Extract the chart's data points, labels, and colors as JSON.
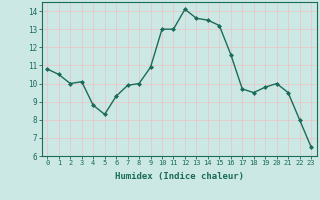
{
  "x": [
    0,
    1,
    2,
    3,
    4,
    5,
    6,
    7,
    8,
    9,
    10,
    11,
    12,
    13,
    14,
    15,
    16,
    17,
    18,
    19,
    20,
    21,
    22,
    23
  ],
  "y": [
    10.8,
    10.5,
    10.0,
    10.1,
    8.8,
    8.3,
    9.3,
    9.9,
    10.0,
    10.9,
    13.0,
    13.0,
    14.1,
    13.6,
    13.5,
    13.2,
    11.6,
    9.7,
    9.5,
    9.8,
    10.0,
    9.5,
    8.0,
    6.5
  ],
  "xlabel": "Humidex (Indice chaleur)",
  "ylim": [
    6,
    14.5
  ],
  "xlim": [
    -0.5,
    23.5
  ],
  "yticks": [
    6,
    7,
    8,
    9,
    10,
    11,
    12,
    13,
    14
  ],
  "xticks": [
    0,
    1,
    2,
    3,
    4,
    5,
    6,
    7,
    8,
    9,
    10,
    11,
    12,
    13,
    14,
    15,
    16,
    17,
    18,
    19,
    20,
    21,
    22,
    23
  ],
  "line_color": "#1a6b5a",
  "marker_color": "#1a6b5a",
  "bg_color": "#cce8e4",
  "grid_color": "#e8c8c8",
  "tick_label_color": "#1a6b5a",
  "xlabel_color": "#1a6b5a"
}
